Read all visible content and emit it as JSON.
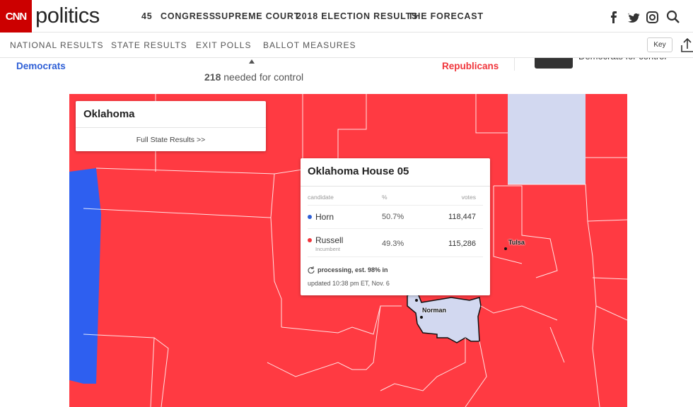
{
  "header": {
    "logo": "CNN",
    "brand": "politics",
    "nav": [
      "45",
      "CONGRESS",
      "SUPREME COURT",
      "2018 ELECTION RESULTS",
      "THE FORECAST"
    ]
  },
  "subnav": {
    "items": [
      "NATIONAL RESULTS",
      "STATE RESULTS",
      "EXIT POLLS",
      "BALLOT MEASURES"
    ],
    "key_button": "Key"
  },
  "control_bar": {
    "left_label": "Democrats",
    "needed_count": "218",
    "needed_text": "needed for control",
    "right_label": "Republicans",
    "clipped_text": "Democrats for control"
  },
  "map": {
    "state_panel": {
      "title": "Oklahoma",
      "link": "Full State Results >>"
    },
    "cities": [
      "Tulsa",
      "Norman"
    ],
    "tooltip": {
      "title": "Oklahoma House 05",
      "columns": [
        "candidate",
        "%",
        "votes"
      ],
      "rows": [
        {
          "candidate": "Horn",
          "pct": "50.7%",
          "votes": "118,447"
        },
        {
          "candidate": "Russell",
          "note": "Incumbent",
          "pct": "49.3%",
          "votes": "115,286"
        }
      ],
      "status": "processing, est. 98% in",
      "updated": "updated 10:38 pm ET, Nov. 6"
    }
  }
}
